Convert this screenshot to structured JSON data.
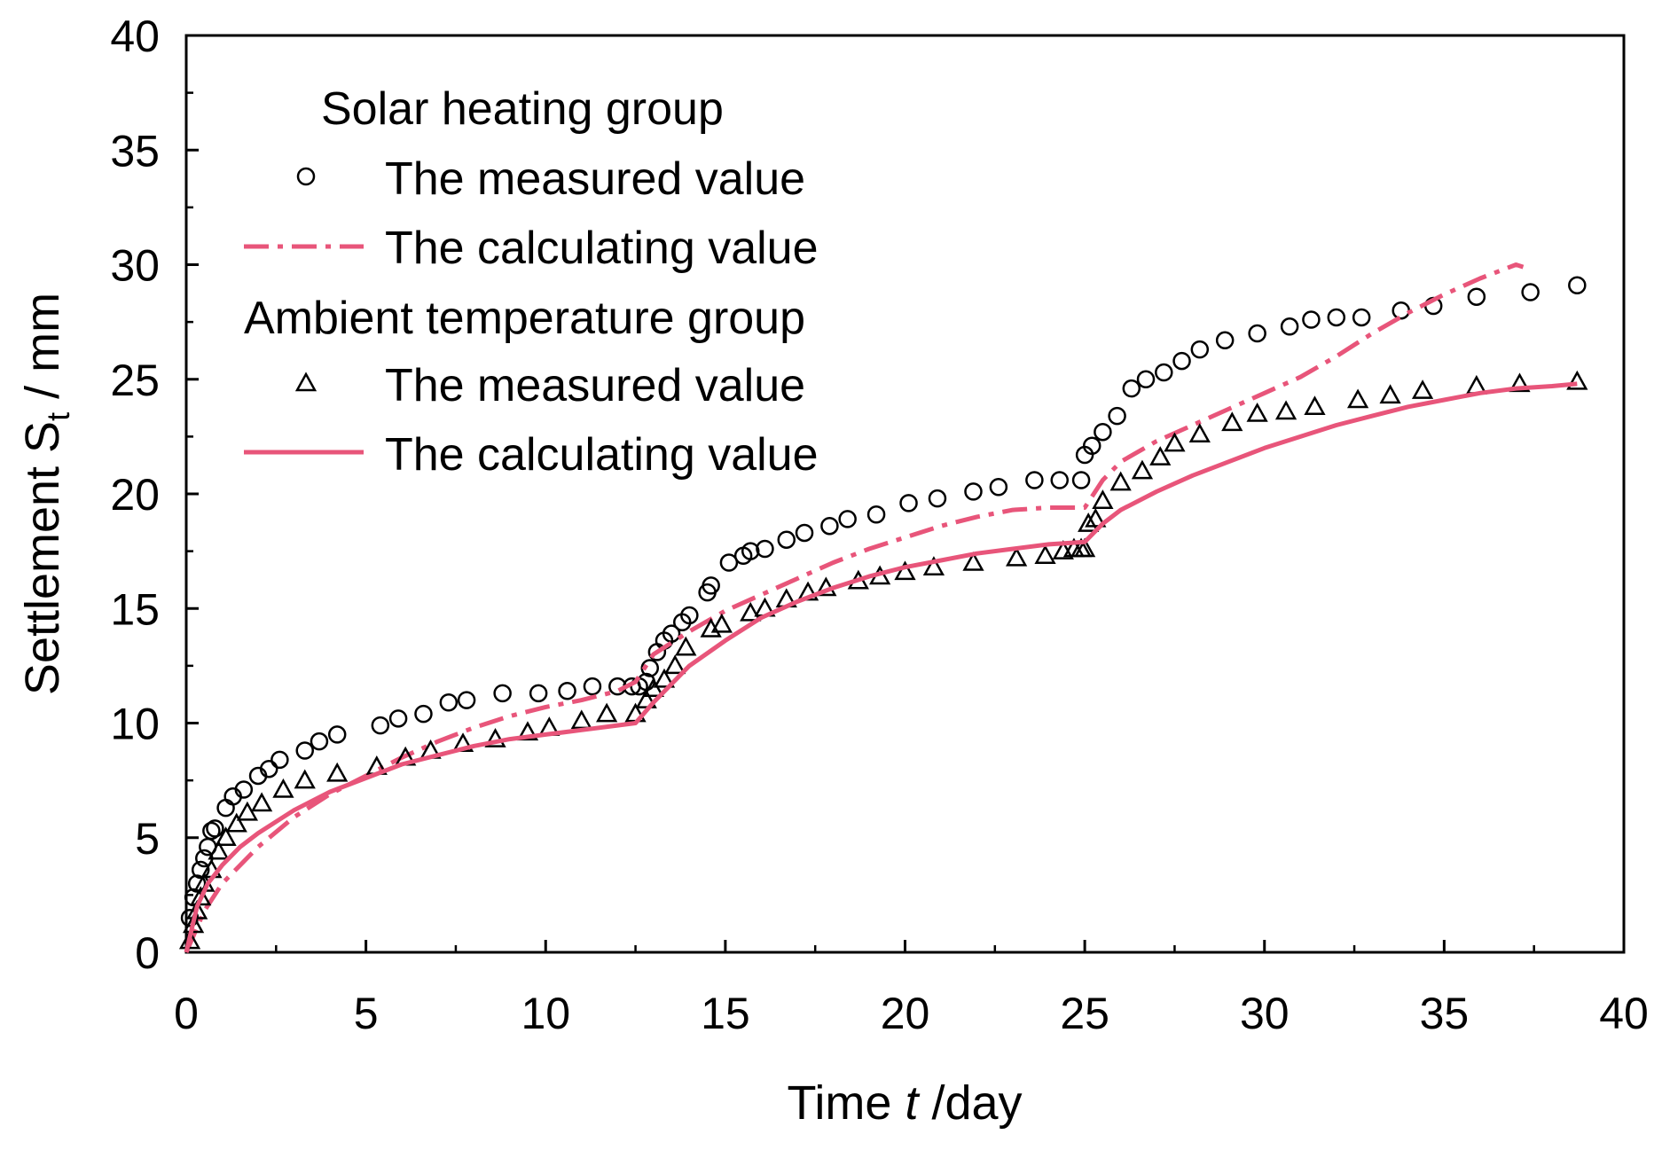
{
  "chart_data": {
    "type": "scatter",
    "xlabel": {
      "prefix": "Time ",
      "var": "t",
      "suffix": " /day"
    },
    "ylabel": {
      "prefix": "Settlement ",
      "var": "S",
      "sub": "t",
      "suffix": " / mm"
    },
    "xlim": [
      0,
      40
    ],
    "ylim": [
      0,
      40
    ],
    "xticks": [
      0,
      5,
      10,
      15,
      20,
      25,
      30,
      35,
      40
    ],
    "yticks": [
      0,
      5,
      10,
      15,
      20,
      25,
      30,
      35,
      40
    ],
    "grid": false,
    "legend_position": "top-left",
    "colors": {
      "calc": "#e8557a",
      "marker": "#000000"
    },
    "groups": [
      {
        "name": "Solar heating group",
        "series": [
          {
            "name": "The measured value",
            "kind": "measured",
            "marker": "circle",
            "x": [
              0.1,
              0.2,
              0.3,
              0.4,
              0.5,
              0.6,
              0.7,
              0.8,
              1.1,
              1.3,
              1.6,
              2.0,
              2.3,
              2.6,
              3.3,
              3.7,
              4.2,
              5.4,
              5.9,
              6.6,
              7.3,
              7.8,
              8.8,
              9.8,
              10.6,
              11.3,
              12.0,
              12.4,
              12.6,
              12.8,
              12.9,
              13.1,
              13.3,
              13.5,
              13.8,
              14.0,
              14.5,
              14.6,
              15.1,
              15.5,
              15.7,
              16.1,
              16.7,
              17.2,
              17.9,
              18.4,
              19.2,
              20.1,
              20.9,
              21.9,
              22.6,
              23.6,
              24.3,
              24.9,
              25.0,
              25.2,
              25.5,
              25.9,
              26.3,
              26.7,
              27.2,
              27.7,
              28.2,
              28.9,
              29.8,
              30.7,
              31.3,
              32.0,
              32.7,
              33.8,
              34.7,
              35.9,
              37.4,
              38.7
            ],
            "y": [
              1.5,
              2.4,
              3.0,
              3.6,
              4.1,
              4.6,
              5.3,
              5.4,
              6.3,
              6.8,
              7.1,
              7.7,
              8.0,
              8.4,
              8.8,
              9.2,
              9.5,
              9.9,
              10.2,
              10.4,
              10.9,
              11.0,
              11.3,
              11.3,
              11.4,
              11.6,
              11.6,
              11.6,
              11.6,
              11.8,
              12.4,
              13.1,
              13.6,
              13.9,
              14.4,
              14.7,
              15.7,
              16.0,
              17.0,
              17.3,
              17.5,
              17.6,
              18.0,
              18.3,
              18.6,
              18.9,
              19.1,
              19.6,
              19.8,
              20.1,
              20.3,
              20.6,
              20.6,
              20.6,
              21.7,
              22.1,
              22.7,
              23.4,
              24.6,
              25.0,
              25.3,
              25.8,
              26.3,
              26.7,
              27.0,
              27.3,
              27.6,
              27.7,
              27.7,
              28.0,
              28.2,
              28.6,
              28.8,
              29.1
            ]
          },
          {
            "name": "The calculating value",
            "kind": "calculated",
            "dash": "dashdot",
            "x": [
              0,
              0.5,
              1,
              2,
              3,
              4,
              5,
              6,
              7,
              8,
              9,
              10,
              11,
              12,
              12.5,
              13,
              14,
              15,
              16,
              17,
              18,
              19,
              20,
              21,
              22,
              23,
              24,
              25,
              25.5,
              26,
              27,
              28,
              29,
              30,
              31,
              32,
              33,
              34,
              35,
              36,
              37,
              37.2
            ],
            "y": [
              0,
              1.8,
              3.0,
              4.6,
              5.9,
              6.9,
              7.7,
              8.5,
              9.2,
              9.8,
              10.3,
              10.7,
              11.0,
              11.4,
              11.8,
              13.0,
              14.0,
              14.9,
              15.6,
              16.3,
              17.0,
              17.6,
              18.1,
              18.6,
              19.0,
              19.3,
              19.4,
              19.4,
              20.6,
              21.4,
              22.3,
              23.0,
              23.7,
              24.4,
              25.1,
              26.0,
              27.0,
              27.9,
              28.7,
              29.4,
              30.0,
              29.9
            ]
          }
        ]
      },
      {
        "name": "Ambient temperature group",
        "series": [
          {
            "name": "The measured value",
            "kind": "measured",
            "marker": "triangle",
            "x": [
              0.1,
              0.2,
              0.3,
              0.4,
              0.5,
              0.7,
              0.9,
              1.1,
              1.4,
              1.7,
              2.1,
              2.7,
              3.3,
              4.2,
              5.3,
              6.1,
              6.8,
              7.7,
              8.6,
              9.5,
              10.1,
              11.0,
              11.7,
              12.5,
              12.8,
              13.0,
              13.3,
              13.6,
              13.9,
              14.6,
              14.9,
              15.7,
              16.1,
              16.7,
              17.3,
              17.8,
              18.7,
              19.3,
              20.0,
              20.8,
              21.9,
              23.1,
              23.9,
              24.4,
              24.7,
              24.9,
              25.0,
              25.1,
              25.3,
              25.5,
              26.0,
              26.6,
              27.1,
              27.5,
              28.2,
              29.1,
              29.8,
              30.6,
              31.4,
              32.6,
              33.5,
              34.4,
              35.9,
              37.1,
              38.7
            ],
            "y": [
              0.5,
              1.2,
              1.8,
              2.4,
              3.0,
              3.6,
              4.4,
              5.0,
              5.6,
              6.1,
              6.5,
              7.1,
              7.5,
              7.8,
              8.1,
              8.5,
              8.8,
              9.1,
              9.3,
              9.6,
              9.8,
              10.1,
              10.4,
              10.4,
              11.0,
              11.5,
              11.9,
              12.5,
              13.3,
              14.1,
              14.3,
              14.8,
              15.0,
              15.4,
              15.7,
              15.9,
              16.2,
              16.4,
              16.6,
              16.8,
              17.0,
              17.2,
              17.3,
              17.5,
              17.6,
              17.6,
              17.6,
              18.7,
              18.9,
              19.7,
              20.5,
              21.0,
              21.6,
              22.2,
              22.6,
              23.1,
              23.5,
              23.6,
              23.8,
              24.1,
              24.3,
              24.5,
              24.7,
              24.8,
              24.9
            ]
          },
          {
            "name": "The calculating value",
            "kind": "calculated",
            "dash": "solid",
            "x": [
              0,
              0.3,
              0.6,
              1,
              1.5,
              2,
              3,
              4,
              5,
              6,
              7,
              8,
              9,
              10,
              11,
              12,
              12.5,
              13,
              14,
              15,
              16,
              17,
              18,
              19,
              20,
              21,
              22,
              23,
              24,
              25,
              25.5,
              26,
              27,
              28,
              29,
              30,
              31,
              32,
              33,
              34,
              35,
              36,
              37,
              38,
              38.7
            ],
            "y": [
              0,
              2.0,
              3.0,
              3.8,
              4.6,
              5.2,
              6.2,
              7.0,
              7.6,
              8.2,
              8.6,
              9.0,
              9.3,
              9.5,
              9.7,
              9.9,
              10.0,
              10.9,
              12.5,
              13.6,
              14.6,
              15.3,
              15.9,
              16.4,
              16.8,
              17.1,
              17.4,
              17.6,
              17.8,
              17.9,
              18.7,
              19.3,
              20.1,
              20.8,
              21.4,
              22.0,
              22.5,
              23.0,
              23.4,
              23.8,
              24.1,
              24.4,
              24.6,
              24.7,
              24.8
            ]
          }
        ]
      }
    ]
  }
}
